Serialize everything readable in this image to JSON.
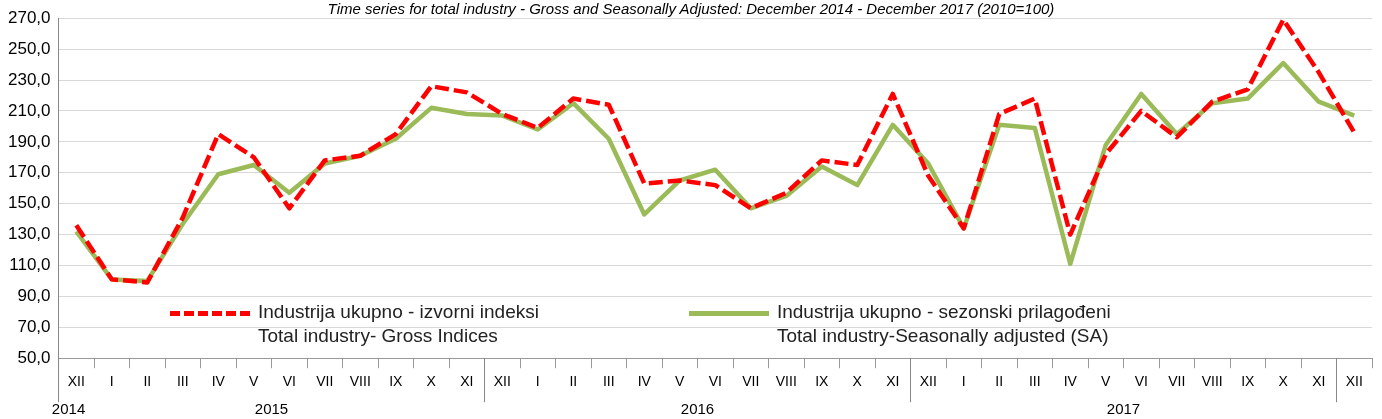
{
  "chart_data": {
    "type": "line",
    "title": "Time series for total industry - Gross and Seasonally Adjusted: December 2014 - December 2017 (2010=100)",
    "categories": [
      "XII",
      "I",
      "II",
      "III",
      "IV",
      "V",
      "VI",
      "VII",
      "VIII",
      "IX",
      "X",
      "XI",
      "XII",
      "I",
      "II",
      "III",
      "IV",
      "V",
      "VI",
      "VII",
      "VIII",
      "IX",
      "X",
      "XI",
      "XII",
      "I",
      "II",
      "III",
      "IV",
      "V",
      "VI",
      "VII",
      "VIII",
      "IX",
      "X",
      "XI",
      "XII"
    ],
    "series": [
      {
        "name": "Industrija ukupno - izvorni indeksi\nTotal industry- Gross Indices",
        "color": "#ff0000",
        "line_style": "dashed",
        "values": [
          136,
          101,
          99,
          141,
          195,
          180,
          147,
          178,
          181,
          195,
          226,
          222,
          208,
          199,
          218,
          214,
          163,
          165,
          162,
          147,
          157,
          178,
          175,
          221,
          168,
          134,
          208,
          218,
          130,
          182,
          210,
          193,
          216,
          224,
          269,
          235,
          196
        ]
      },
      {
        "name": "Industrija ukupno - sezonski prilagođeni\nTotal industry-Seasonally adjusted (SA)",
        "color": "#9bbb59",
        "line_style": "solid",
        "values": [
          132,
          101,
          100,
          137,
          169,
          175,
          157,
          176,
          181,
          192,
          212,
          208,
          207,
          198,
          215,
          192,
          143,
          165,
          172,
          147,
          155,
          174,
          162,
          201,
          176,
          134,
          201,
          199,
          111,
          188,
          221,
          195,
          215,
          218,
          241,
          216,
          207
        ]
      }
    ],
    "ylim": [
      50,
      270
    ],
    "yticks": [
      {
        "value": 50,
        "label": "50,0"
      },
      {
        "value": 70,
        "label": "70,0"
      },
      {
        "value": 90,
        "label": "90,0"
      },
      {
        "value": 110,
        "label": "110,0"
      },
      {
        "value": 130,
        "label": "130,0"
      },
      {
        "value": 150,
        "label": "150,0"
      },
      {
        "value": 170,
        "label": "170,0"
      },
      {
        "value": 190,
        "label": "190,0"
      },
      {
        "value": 210,
        "label": "210,0"
      },
      {
        "value": 230,
        "label": "230,0"
      },
      {
        "value": 250,
        "label": "250,0"
      },
      {
        "value": 270,
        "label": "270,0"
      }
    ],
    "grid": "y",
    "legend": "bottom",
    "marker": "none",
    "annotations": [
      "2014",
      "2015",
      "2016",
      "2017"
    ]
  }
}
